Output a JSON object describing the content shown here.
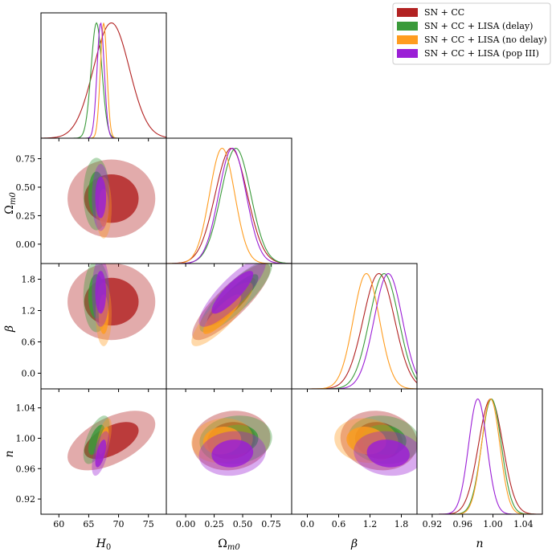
{
  "figure": {
    "title": "",
    "legend": [
      {
        "label": "SN + CC",
        "color": "#b22222"
      },
      {
        "label": "SN + CC + LISA (delay)",
        "color": "#3a9a3a"
      },
      {
        "label": "SN + CC + LISA (no delay)",
        "color": "#ff9c1f"
      },
      {
        "label": "SN + CC + LISA (pop III)",
        "color": "#9b1fd6"
      }
    ],
    "axes_labels": {
      "H0": "H",
      "H0_sub": "0",
      "Om": "Ω",
      "Om_sub": "m0",
      "beta": "β",
      "n": "n"
    }
  },
  "chart_data": {
    "type": "scatter",
    "subtype": "corner-plot",
    "parameters": [
      "H0",
      "Omega_m0",
      "beta",
      "n"
    ],
    "ranges": {
      "H0": [
        57,
        78
      ],
      "Omega_m0": [
        -0.17,
        0.93
      ],
      "beta": [
        -0.3,
        2.1
      ],
      "n": [
        0.9,
        1.065
      ]
    },
    "ticks": {
      "H0": [
        {
          "v": 60,
          "t": "60"
        },
        {
          "v": 65,
          "t": "65"
        },
        {
          "v": 70,
          "t": "70"
        },
        {
          "v": 75,
          "t": "75"
        }
      ],
      "Omega_m0": [
        {
          "v": 0.0,
          "t": "0.00"
        },
        {
          "v": 0.25,
          "t": "0.25"
        },
        {
          "v": 0.5,
          "t": "0.50"
        },
        {
          "v": 0.75,
          "t": "0.75"
        }
      ],
      "beta": [
        {
          "v": 0.0,
          "t": "0.0"
        },
        {
          "v": 0.6,
          "t": "0.6"
        },
        {
          "v": 1.2,
          "t": "1.2"
        },
        {
          "v": 1.8,
          "t": "1.8"
        }
      ],
      "n": [
        {
          "v": 0.92,
          "t": "0.92"
        },
        {
          "v": 0.96,
          "t": "0.96"
        },
        {
          "v": 1.0,
          "t": "1.00"
        },
        {
          "v": 1.04,
          "t": "1.04"
        }
      ]
    },
    "series": [
      {
        "name": "SN + CC",
        "color": "#b22222",
        "mean": {
          "H0": 68.8,
          "Omega_m0": 0.4,
          "beta": 1.37,
          "n": 0.997
        },
        "sigma": {
          "H0": 3.0,
          "Omega_m0": 0.14,
          "beta": 0.3,
          "n": 0.016
        },
        "corr": [
          [
            0,
            1,
            0.0
          ],
          [
            0,
            2,
            0.0
          ],
          [
            0,
            3,
            0.55
          ],
          [
            1,
            2,
            0.85
          ],
          [
            1,
            3,
            0.1
          ],
          [
            2,
            3,
            -0.1
          ]
        ]
      },
      {
        "name": "SN + CC + LISA (delay)",
        "color": "#3a9a3a",
        "mean": {
          "H0": 66.3,
          "Omega_m0": 0.44,
          "beta": 1.47,
          "n": 0.998
        },
        "sigma": {
          "H0": 0.9,
          "Omega_m0": 0.13,
          "beta": 0.28,
          "n": 0.013
        },
        "corr": [
          [
            0,
            1,
            0.0
          ],
          [
            0,
            2,
            0.0
          ],
          [
            0,
            3,
            0.6
          ],
          [
            1,
            2,
            0.85
          ],
          [
            1,
            3,
            0.1
          ],
          [
            2,
            3,
            -0.1
          ]
        ]
      },
      {
        "name": "SN + CC + LISA (no delay)",
        "color": "#ff9c1f",
        "mean": {
          "H0": 67.5,
          "Omega_m0": 0.32,
          "beta": 1.13,
          "n": 0.997
        },
        "sigma": {
          "H0": 0.55,
          "Omega_m0": 0.11,
          "beta": 0.25,
          "n": 0.012
        },
        "corr": [
          [
            0,
            1,
            0.0
          ],
          [
            0,
            2,
            0.0
          ],
          [
            0,
            3,
            0.6
          ],
          [
            1,
            2,
            0.85
          ],
          [
            1,
            3,
            0.1
          ],
          [
            2,
            3,
            -0.1
          ]
        ]
      },
      {
        "name": "SN + CC + LISA (pop III)",
        "color": "#9b1fd6",
        "mean": {
          "H0": 67.0,
          "Omega_m0": 0.41,
          "beta": 1.55,
          "n": 0.98
        },
        "sigma": {
          "H0": 0.6,
          "Omega_m0": 0.12,
          "beta": 0.27,
          "n": 0.012
        },
        "corr": [
          [
            0,
            1,
            0.0
          ],
          [
            0,
            2,
            0.0
          ],
          [
            0,
            3,
            0.6
          ],
          [
            1,
            2,
            0.85
          ],
          [
            1,
            3,
            0.1
          ],
          [
            2,
            3,
            -0.1
          ]
        ]
      }
    ]
  }
}
